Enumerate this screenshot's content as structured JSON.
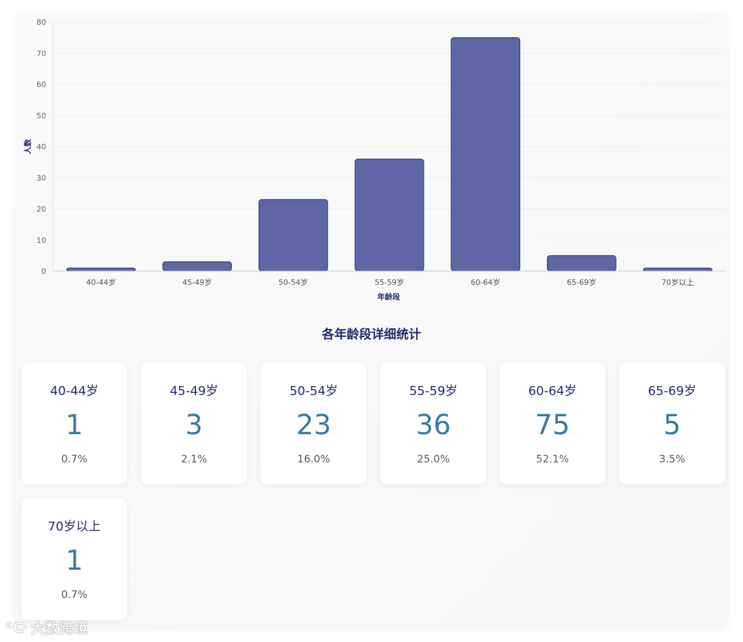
{
  "chart_data": {
    "type": "bar",
    "categories": [
      "40-44岁",
      "45-49岁",
      "50-54岁",
      "55-59岁",
      "60-64岁",
      "65-69岁",
      "70岁以上"
    ],
    "values": [
      1,
      3,
      23,
      36,
      75,
      5,
      1
    ],
    "xlabel": "年龄段",
    "ylabel": "人数",
    "ylim": [
      0,
      80
    ],
    "yticks": [
      0,
      10,
      20,
      30,
      40,
      50,
      60,
      70,
      80
    ],
    "grid": true,
    "bar_color": "#5e66a5",
    "bar_border_color": "#2f3570"
  },
  "stats": {
    "title": "各年龄段详细统计",
    "cards": [
      {
        "range": "40-44岁",
        "count": "1",
        "percent": "0.7%"
      },
      {
        "range": "45-49岁",
        "count": "3",
        "percent": "2.1%"
      },
      {
        "range": "50-54岁",
        "count": "23",
        "percent": "16.0%"
      },
      {
        "range": "55-59岁",
        "count": "36",
        "percent": "25.0%"
      },
      {
        "range": "60-64岁",
        "count": "75",
        "percent": "52.1%"
      },
      {
        "range": "65-69岁",
        "count": "5",
        "percent": "3.5%"
      },
      {
        "range": "70岁以上",
        "count": "1",
        "percent": "0.7%"
      }
    ]
  },
  "watermark": {
    "logo": "ᑦᑢ",
    "text": "大数跨境"
  },
  "colors": {
    "title": "#232c6b",
    "count": "#3b7aa0",
    "percent": "#555b66"
  }
}
